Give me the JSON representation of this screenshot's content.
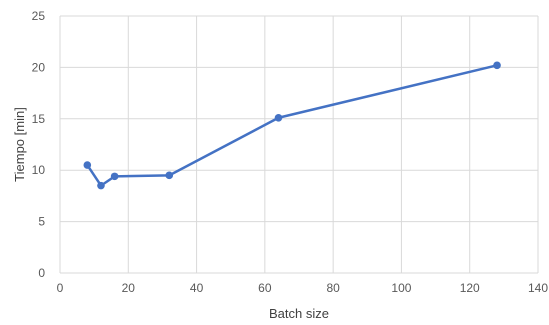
{
  "chart_data": {
    "type": "line",
    "title": "",
    "xlabel": "Batch size",
    "ylabel": "Tiempo [min]",
    "xlim": [
      0,
      140
    ],
    "ylim": [
      0,
      25
    ],
    "xticks": [
      0,
      20,
      40,
      60,
      80,
      100,
      120,
      140
    ],
    "yticks": [
      0,
      5,
      10,
      15,
      20,
      25
    ],
    "grid": true,
    "legend": "none",
    "series": [
      {
        "color": "#4472C4",
        "x": [
          8,
          12,
          16,
          32,
          64,
          128
        ],
        "y": [
          10.5,
          8.5,
          9.4,
          9.5,
          15.1,
          20.2
        ]
      }
    ]
  }
}
